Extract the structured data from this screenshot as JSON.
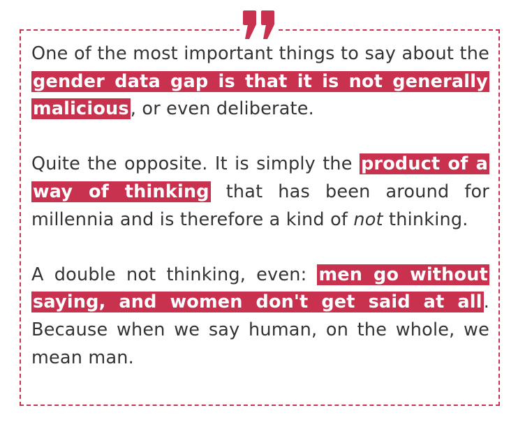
{
  "colors": {
    "accent": "#c8324f",
    "text": "#333333",
    "background": "#ffffff"
  },
  "quote_icon": "closing-quote-icon",
  "paragraphs": [
    {
      "pre": "One of the most important things to say about the ",
      "highlight": "gender data gap is that it is not generally malicious",
      "post": ", or even deliberate."
    },
    {
      "pre": "Quite the opposite. It is simply the ",
      "highlight": "product of a way of thinking",
      "mid": " that has been around for millennia and is therefore a kind of ",
      "emphasis": "not",
      "post": " thinking."
    },
    {
      "pre": "A double not thinking, even: ",
      "highlight": "men go without saying, and women don't get said at all",
      "post": ". Because when we say human, on the whole, we mean man."
    }
  ]
}
